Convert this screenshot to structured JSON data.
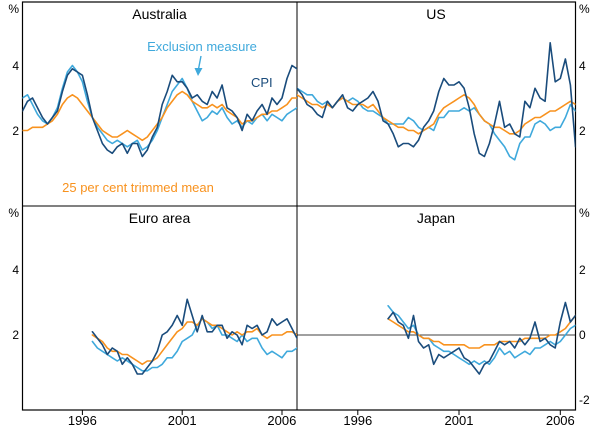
{
  "figure": {
    "annotations": {
      "exclusion": "Exclusion measure",
      "cpi": "CPI",
      "trimmed": "25 per cent trimmed mean"
    }
  },
  "chart_data": {
    "type": "line",
    "x_start": 1993.0,
    "x_step": 0.25,
    "x_domain": [
      1993,
      2006.75
    ],
    "x_tick_years": [
      1996,
      2001,
      2006
    ],
    "x_tick_labels": [
      "1996",
      "2001",
      "2006"
    ],
    "grid": "off",
    "legend": "in-panel annotations",
    "series_colors": {
      "cpi": "#1A4C7C",
      "exclusion": "#3FA9DC",
      "trimmed": "#F8921E"
    },
    "series_names": {
      "cpi": "CPI",
      "exclusion": "Exclusion measure",
      "trimmed": "25 per cent trimmed mean"
    },
    "panels": [
      {
        "title": "Australia",
        "position": "top-left",
        "unit": "%",
        "yticks": [
          2,
          4
        ],
        "ylim": [
          -0.3,
          6
        ],
        "series": [
          {
            "key": "cpi",
            "name": "CPI",
            "values": [
              2.6,
              2.9,
              3.0,
              2.7,
              2.4,
              2.2,
              2.4,
              2.6,
              3.2,
              3.7,
              3.9,
              3.8,
              3.7,
              3.1,
              2.4,
              2.0,
              1.6,
              1.4,
              1.3,
              1.5,
              1.6,
              1.3,
              1.6,
              1.6,
              1.2,
              1.4,
              1.8,
              2.1,
              2.8,
              3.2,
              3.7,
              3.5,
              3.5,
              3.3,
              3.0,
              3.1,
              2.9,
              2.8,
              3.2,
              3.0,
              3.4,
              2.7,
              2.6,
              2.4,
              2.0,
              2.5,
              2.3,
              2.6,
              2.8,
              2.5,
              3.0,
              2.8,
              3.0,
              3.6,
              4.0,
              3.9
            ]
          },
          {
            "key": "exclusion",
            "name": "Exclusion measure",
            "values": [
              3.0,
              3.1,
              2.8,
              2.5,
              2.3,
              2.2,
              2.4,
              2.7,
              3.3,
              3.8,
              4.0,
              3.8,
              3.5,
              2.9,
              2.4,
              2.1,
              1.9,
              1.7,
              1.6,
              1.7,
              1.6,
              1.5,
              1.6,
              1.7,
              1.4,
              1.5,
              1.7,
              2.0,
              2.4,
              2.8,
              3.2,
              3.4,
              3.6,
              3.3,
              2.9,
              2.6,
              2.3,
              2.4,
              2.6,
              2.5,
              2.7,
              2.4,
              2.2,
              2.3,
              2.1,
              2.3,
              2.2,
              2.4,
              2.5,
              2.3,
              2.5,
              2.4,
              2.3,
              2.5,
              2.6,
              2.7
            ]
          },
          {
            "key": "trimmed",
            "name": "25 per cent trimmed mean",
            "values": [
              2.0,
              2.0,
              2.1,
              2.1,
              2.1,
              2.2,
              2.3,
              2.5,
              2.8,
              3.0,
              3.1,
              3.0,
              2.8,
              2.6,
              2.4,
              2.2,
              2.0,
              1.9,
              1.8,
              1.8,
              1.9,
              2.0,
              1.9,
              1.8,
              1.7,
              1.8,
              2.0,
              2.2,
              2.4,
              2.7,
              2.9,
              3.1,
              3.2,
              3.1,
              2.9,
              2.8,
              2.7,
              2.7,
              2.8,
              2.7,
              2.8,
              2.6,
              2.5,
              2.4,
              2.2,
              2.3,
              2.3,
              2.4,
              2.5,
              2.5,
              2.6,
              2.6,
              2.7,
              2.8,
              3.0,
              3.0
            ]
          }
        ]
      },
      {
        "title": "US",
        "position": "top-right",
        "unit": "%",
        "yticks": [
          2,
          4
        ],
        "ylim": [
          -0.3,
          6
        ],
        "series": [
          {
            "key": "cpi",
            "name": "CPI",
            "values": [
              3.3,
              3.1,
              2.8,
              2.7,
              2.5,
              2.4,
              2.9,
              2.7,
              2.9,
              3.1,
              2.7,
              2.6,
              2.8,
              2.9,
              3.0,
              3.2,
              2.9,
              2.3,
              2.2,
              1.9,
              1.5,
              1.6,
              1.6,
              1.5,
              1.7,
              2.1,
              2.3,
              2.6,
              3.2,
              3.6,
              3.4,
              3.4,
              3.5,
              3.3,
              2.7,
              1.9,
              1.3,
              1.2,
              1.6,
              2.2,
              2.9,
              2.1,
              2.2,
              1.9,
              1.8,
              2.9,
              2.7,
              3.3,
              3.0,
              2.9,
              4.7,
              3.5,
              3.6,
              4.2,
              3.4,
              1.5
            ]
          },
          {
            "key": "exclusion",
            "name": "Exclusion measure",
            "values": [
              3.3,
              3.2,
              3.1,
              3.1,
              2.9,
              2.8,
              2.9,
              2.7,
              2.9,
              3.0,
              2.9,
              3.0,
              2.9,
              2.7,
              2.6,
              2.6,
              2.5,
              2.4,
              2.2,
              2.2,
              2.2,
              2.2,
              2.4,
              2.3,
              2.1,
              2.0,
              2.1,
              2.0,
              2.4,
              2.4,
              2.6,
              2.6,
              2.6,
              2.7,
              2.6,
              2.7,
              2.5,
              2.3,
              2.2,
              1.9,
              1.7,
              1.5,
              1.2,
              1.1,
              1.6,
              1.8,
              1.8,
              2.2,
              2.3,
              2.2,
              2.0,
              2.1,
              2.1,
              2.4,
              2.8,
              2.6
            ]
          },
          {
            "key": "trimmed",
            "name": "25 per cent trimmed mean",
            "values": [
              3.1,
              3.0,
              2.9,
              2.8,
              2.8,
              2.7,
              2.8,
              2.7,
              2.9,
              3.0,
              2.9,
              2.8,
              2.8,
              2.8,
              2.7,
              2.8,
              2.6,
              2.4,
              2.3,
              2.2,
              2.1,
              2.1,
              2.0,
              2.0,
              1.9,
              2.0,
              2.1,
              2.2,
              2.5,
              2.7,
              2.8,
              2.9,
              3.0,
              3.1,
              3.0,
              2.8,
              2.5,
              2.3,
              2.2,
              2.1,
              2.1,
              2.0,
              1.9,
              1.9,
              2.0,
              2.2,
              2.3,
              2.4,
              2.4,
              2.5,
              2.6,
              2.6,
              2.7,
              2.8,
              2.9,
              2.8
            ]
          }
        ]
      },
      {
        "title": "Euro area",
        "position": "bottom-left",
        "unit": "%",
        "yticks": [
          2,
          4
        ],
        "ylim": [
          -0.3,
          6
        ],
        "series": [
          {
            "key": "cpi",
            "name": "CPI",
            "values": [
              null,
              null,
              null,
              null,
              null,
              null,
              null,
              null,
              null,
              null,
              null,
              null,
              null,
              null,
              2.1,
              1.9,
              1.7,
              1.4,
              1.6,
              1.5,
              1.1,
              1.3,
              1.1,
              0.8,
              0.8,
              1.0,
              1.2,
              1.5,
              2.0,
              2.1,
              2.3,
              2.6,
              2.3,
              3.1,
              2.6,
              2.1,
              2.6,
              2.1,
              2.1,
              2.3,
              2.3,
              1.9,
              2.1,
              2.0,
              1.7,
              2.3,
              2.2,
              2.3,
              2.0,
              2.1,
              2.5,
              2.3,
              2.4,
              2.5,
              2.2,
              1.9
            ]
          },
          {
            "key": "exclusion",
            "name": "Exclusion measure",
            "values": [
              null,
              null,
              null,
              null,
              null,
              null,
              null,
              null,
              null,
              null,
              null,
              null,
              null,
              null,
              1.8,
              1.6,
              1.5,
              1.4,
              1.3,
              1.2,
              1.3,
              1.2,
              1.1,
              1.0,
              0.9,
              0.9,
              1.0,
              1.0,
              1.1,
              1.3,
              1.3,
              1.5,
              1.8,
              1.9,
              2.0,
              2.3,
              2.5,
              2.4,
              2.2,
              2.3,
              2.0,
              2.0,
              1.9,
              1.8,
              2.0,
              1.8,
              1.9,
              1.9,
              1.6,
              1.4,
              1.5,
              1.4,
              1.3,
              1.5,
              1.5,
              1.6
            ]
          },
          {
            "key": "trimmed",
            "name": "25 per cent trimmed mean",
            "values": [
              null,
              null,
              null,
              null,
              null,
              null,
              null,
              null,
              null,
              null,
              null,
              null,
              null,
              null,
              2.0,
              1.9,
              1.8,
              1.6,
              1.5,
              1.5,
              1.4,
              1.4,
              1.3,
              1.2,
              1.1,
              1.2,
              1.2,
              1.3,
              1.5,
              1.7,
              1.9,
              2.1,
              2.2,
              2.4,
              2.4,
              2.3,
              2.5,
              2.4,
              2.3,
              2.3,
              2.2,
              2.1,
              2.0,
              2.1,
              2.0,
              2.1,
              2.1,
              2.2,
              2.0,
              1.9,
              2.0,
              2.0,
              2.0,
              2.1,
              2.1,
              2.0
            ]
          }
        ]
      },
      {
        "title": "Japan",
        "position": "bottom-right",
        "unit": "%",
        "yticks": [
          -2,
          0,
          2
        ],
        "ylim": [
          -2.3,
          3.9
        ],
        "zero_line": true,
        "series": [
          {
            "key": "cpi",
            "name": "CPI",
            "values": [
              null,
              null,
              null,
              null,
              null,
              null,
              null,
              null,
              null,
              null,
              null,
              null,
              null,
              null,
              null,
              null,
              null,
              null,
              0.5,
              0.7,
              0.4,
              0.3,
              -0.1,
              0.6,
              -0.2,
              -0.4,
              -0.3,
              -0.9,
              -0.6,
              -0.7,
              -0.6,
              -0.5,
              -0.4,
              -0.7,
              -0.8,
              -1.0,
              -1.2,
              -0.9,
              -0.8,
              -0.5,
              -0.2,
              -0.3,
              -0.2,
              -0.4,
              -0.1,
              -0.3,
              -0.1,
              0.4,
              -0.2,
              -0.1,
              -0.3,
              -0.4,
              0.4,
              1.0,
              0.4,
              0.6
            ]
          },
          {
            "key": "exclusion",
            "name": "Exclusion measure",
            "values": [
              null,
              null,
              null,
              null,
              null,
              null,
              null,
              null,
              null,
              null,
              null,
              null,
              null,
              null,
              null,
              null,
              null,
              null,
              0.9,
              0.7,
              0.6,
              0.4,
              0.2,
              0.3,
              0.0,
              -0.1,
              -0.1,
              -0.3,
              -0.4,
              -0.5,
              -0.5,
              -0.6,
              -0.7,
              -0.8,
              -0.9,
              -0.8,
              -0.9,
              -0.8,
              -0.9,
              -0.7,
              -0.4,
              -0.6,
              -0.5,
              -0.7,
              -0.6,
              -0.5,
              -0.6,
              -0.4,
              -0.4,
              -0.3,
              -0.2,
              -0.3,
              -0.2,
              0.0,
              0.2,
              0.3
            ]
          },
          {
            "key": "trimmed",
            "name": "25 per cent trimmed mean",
            "values": [
              null,
              null,
              null,
              null,
              null,
              null,
              null,
              null,
              null,
              null,
              null,
              null,
              null,
              null,
              null,
              null,
              null,
              null,
              0.5,
              0.4,
              0.3,
              0.2,
              0.1,
              0.1,
              0.0,
              -0.1,
              -0.1,
              -0.2,
              -0.2,
              -0.3,
              -0.3,
              -0.3,
              -0.3,
              -0.3,
              -0.4,
              -0.4,
              -0.4,
              -0.3,
              -0.3,
              -0.3,
              -0.2,
              -0.2,
              -0.2,
              -0.2,
              -0.2,
              -0.1,
              -0.1,
              -0.1,
              -0.1,
              -0.1,
              0.0,
              0.0,
              0.1,
              0.2,
              0.4,
              0.6
            ]
          }
        ]
      }
    ]
  }
}
